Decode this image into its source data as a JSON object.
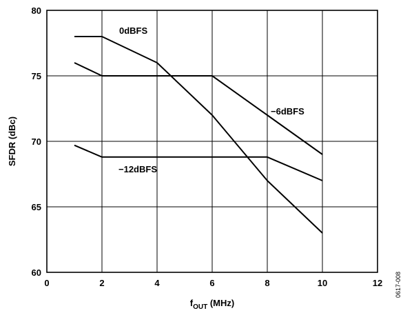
{
  "chart_data": {
    "type": "line",
    "title": "",
    "xlabel_main": "f",
    "xlabel_sub": "OUT",
    "xlabel_rest": " (MHz)",
    "ylabel": "SFDR (dBc)",
    "xlim": [
      0,
      12
    ],
    "ylim": [
      60,
      80
    ],
    "x_ticks": [
      "0",
      "2",
      "4",
      "6",
      "8",
      "10",
      "12"
    ],
    "y_ticks": [
      "60",
      "65",
      "70",
      "75",
      "80"
    ],
    "grid": true,
    "series": [
      {
        "name": "0dBFS",
        "x": [
          1,
          2,
          4,
          6,
          8,
          10
        ],
        "values": [
          78,
          78,
          76,
          72,
          67,
          63
        ]
      },
      {
        "name": "−6dBFS",
        "x": [
          1,
          2,
          4,
          6,
          8,
          10
        ],
        "values": [
          76,
          75,
          75,
          75,
          72,
          69
        ]
      },
      {
        "name": "−12dBFS",
        "x": [
          1,
          2,
          4,
          6,
          8,
          10
        ],
        "values": [
          69.7,
          68.8,
          68.8,
          68.8,
          68.8,
          67
        ]
      }
    ],
    "figure_id": "0617-008"
  }
}
